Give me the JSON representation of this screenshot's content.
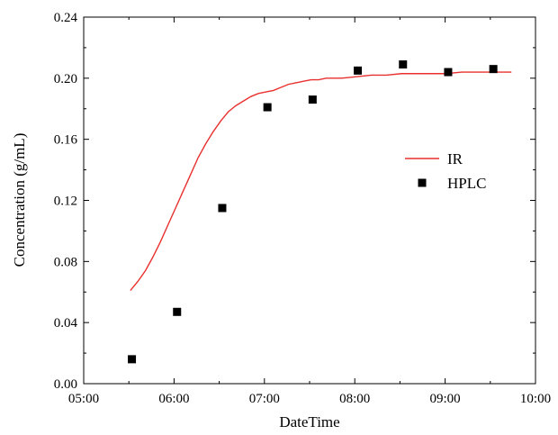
{
  "chart_data": {
    "type": "line",
    "title": "",
    "xlabel": "DateTime",
    "ylabel": "Concentration (g/mL)",
    "x_ticks": [
      "05:00",
      "06:00",
      "07:00",
      "08:00",
      "09:00",
      "10:00"
    ],
    "y_ticks": [
      "0.00",
      "0.04",
      "0.08",
      "0.12",
      "0.16",
      "0.20",
      "0.24"
    ],
    "xlim": [
      "05:00",
      "10:00"
    ],
    "ylim": [
      0,
      0.24
    ],
    "grid": false,
    "legend_position": "right-middle",
    "series": [
      {
        "name": "IR",
        "style": "line",
        "color": "#e8312f",
        "points": [
          [
            "05:31",
            0.061
          ],
          [
            "05:36",
            0.067
          ],
          [
            "05:41",
            0.074
          ],
          [
            "05:46",
            0.083
          ],
          [
            "05:51",
            0.093
          ],
          [
            "05:56",
            0.104
          ],
          [
            "06:01",
            0.115
          ],
          [
            "06:06",
            0.126
          ],
          [
            "06:11",
            0.137
          ],
          [
            "06:16",
            0.148
          ],
          [
            "06:21",
            0.157
          ],
          [
            "06:26",
            0.165
          ],
          [
            "06:31",
            0.172
          ],
          [
            "06:36",
            0.178
          ],
          [
            "06:41",
            0.182
          ],
          [
            "06:46",
            0.185
          ],
          [
            "06:51",
            0.188
          ],
          [
            "06:56",
            0.19
          ],
          [
            "07:01",
            0.191
          ],
          [
            "07:06",
            0.192
          ],
          [
            "07:11",
            0.194
          ],
          [
            "07:16",
            0.196
          ],
          [
            "07:21",
            0.197
          ],
          [
            "07:26",
            0.198
          ],
          [
            "07:31",
            0.199
          ],
          [
            "07:36",
            0.199
          ],
          [
            "07:41",
            0.2
          ],
          [
            "07:51",
            0.2
          ],
          [
            "08:01",
            0.201
          ],
          [
            "08:11",
            0.202
          ],
          [
            "08:21",
            0.202
          ],
          [
            "08:31",
            0.203
          ],
          [
            "08:41",
            0.203
          ],
          [
            "08:51",
            0.203
          ],
          [
            "09:01",
            0.203
          ],
          [
            "09:11",
            0.204
          ],
          [
            "09:21",
            0.204
          ],
          [
            "09:31",
            0.204
          ],
          [
            "09:41",
            0.204
          ],
          [
            "09:44",
            0.204
          ]
        ]
      },
      {
        "name": "HPLC",
        "style": "square",
        "color": "#000000",
        "points": [
          [
            "05:32",
            0.016
          ],
          [
            "06:02",
            0.047
          ],
          [
            "06:32",
            0.115
          ],
          [
            "07:02",
            0.181
          ],
          [
            "07:32",
            0.186
          ],
          [
            "08:02",
            0.205
          ],
          [
            "08:32",
            0.209
          ],
          [
            "09:02",
            0.204
          ],
          [
            "09:32",
            0.206
          ]
        ]
      }
    ]
  }
}
